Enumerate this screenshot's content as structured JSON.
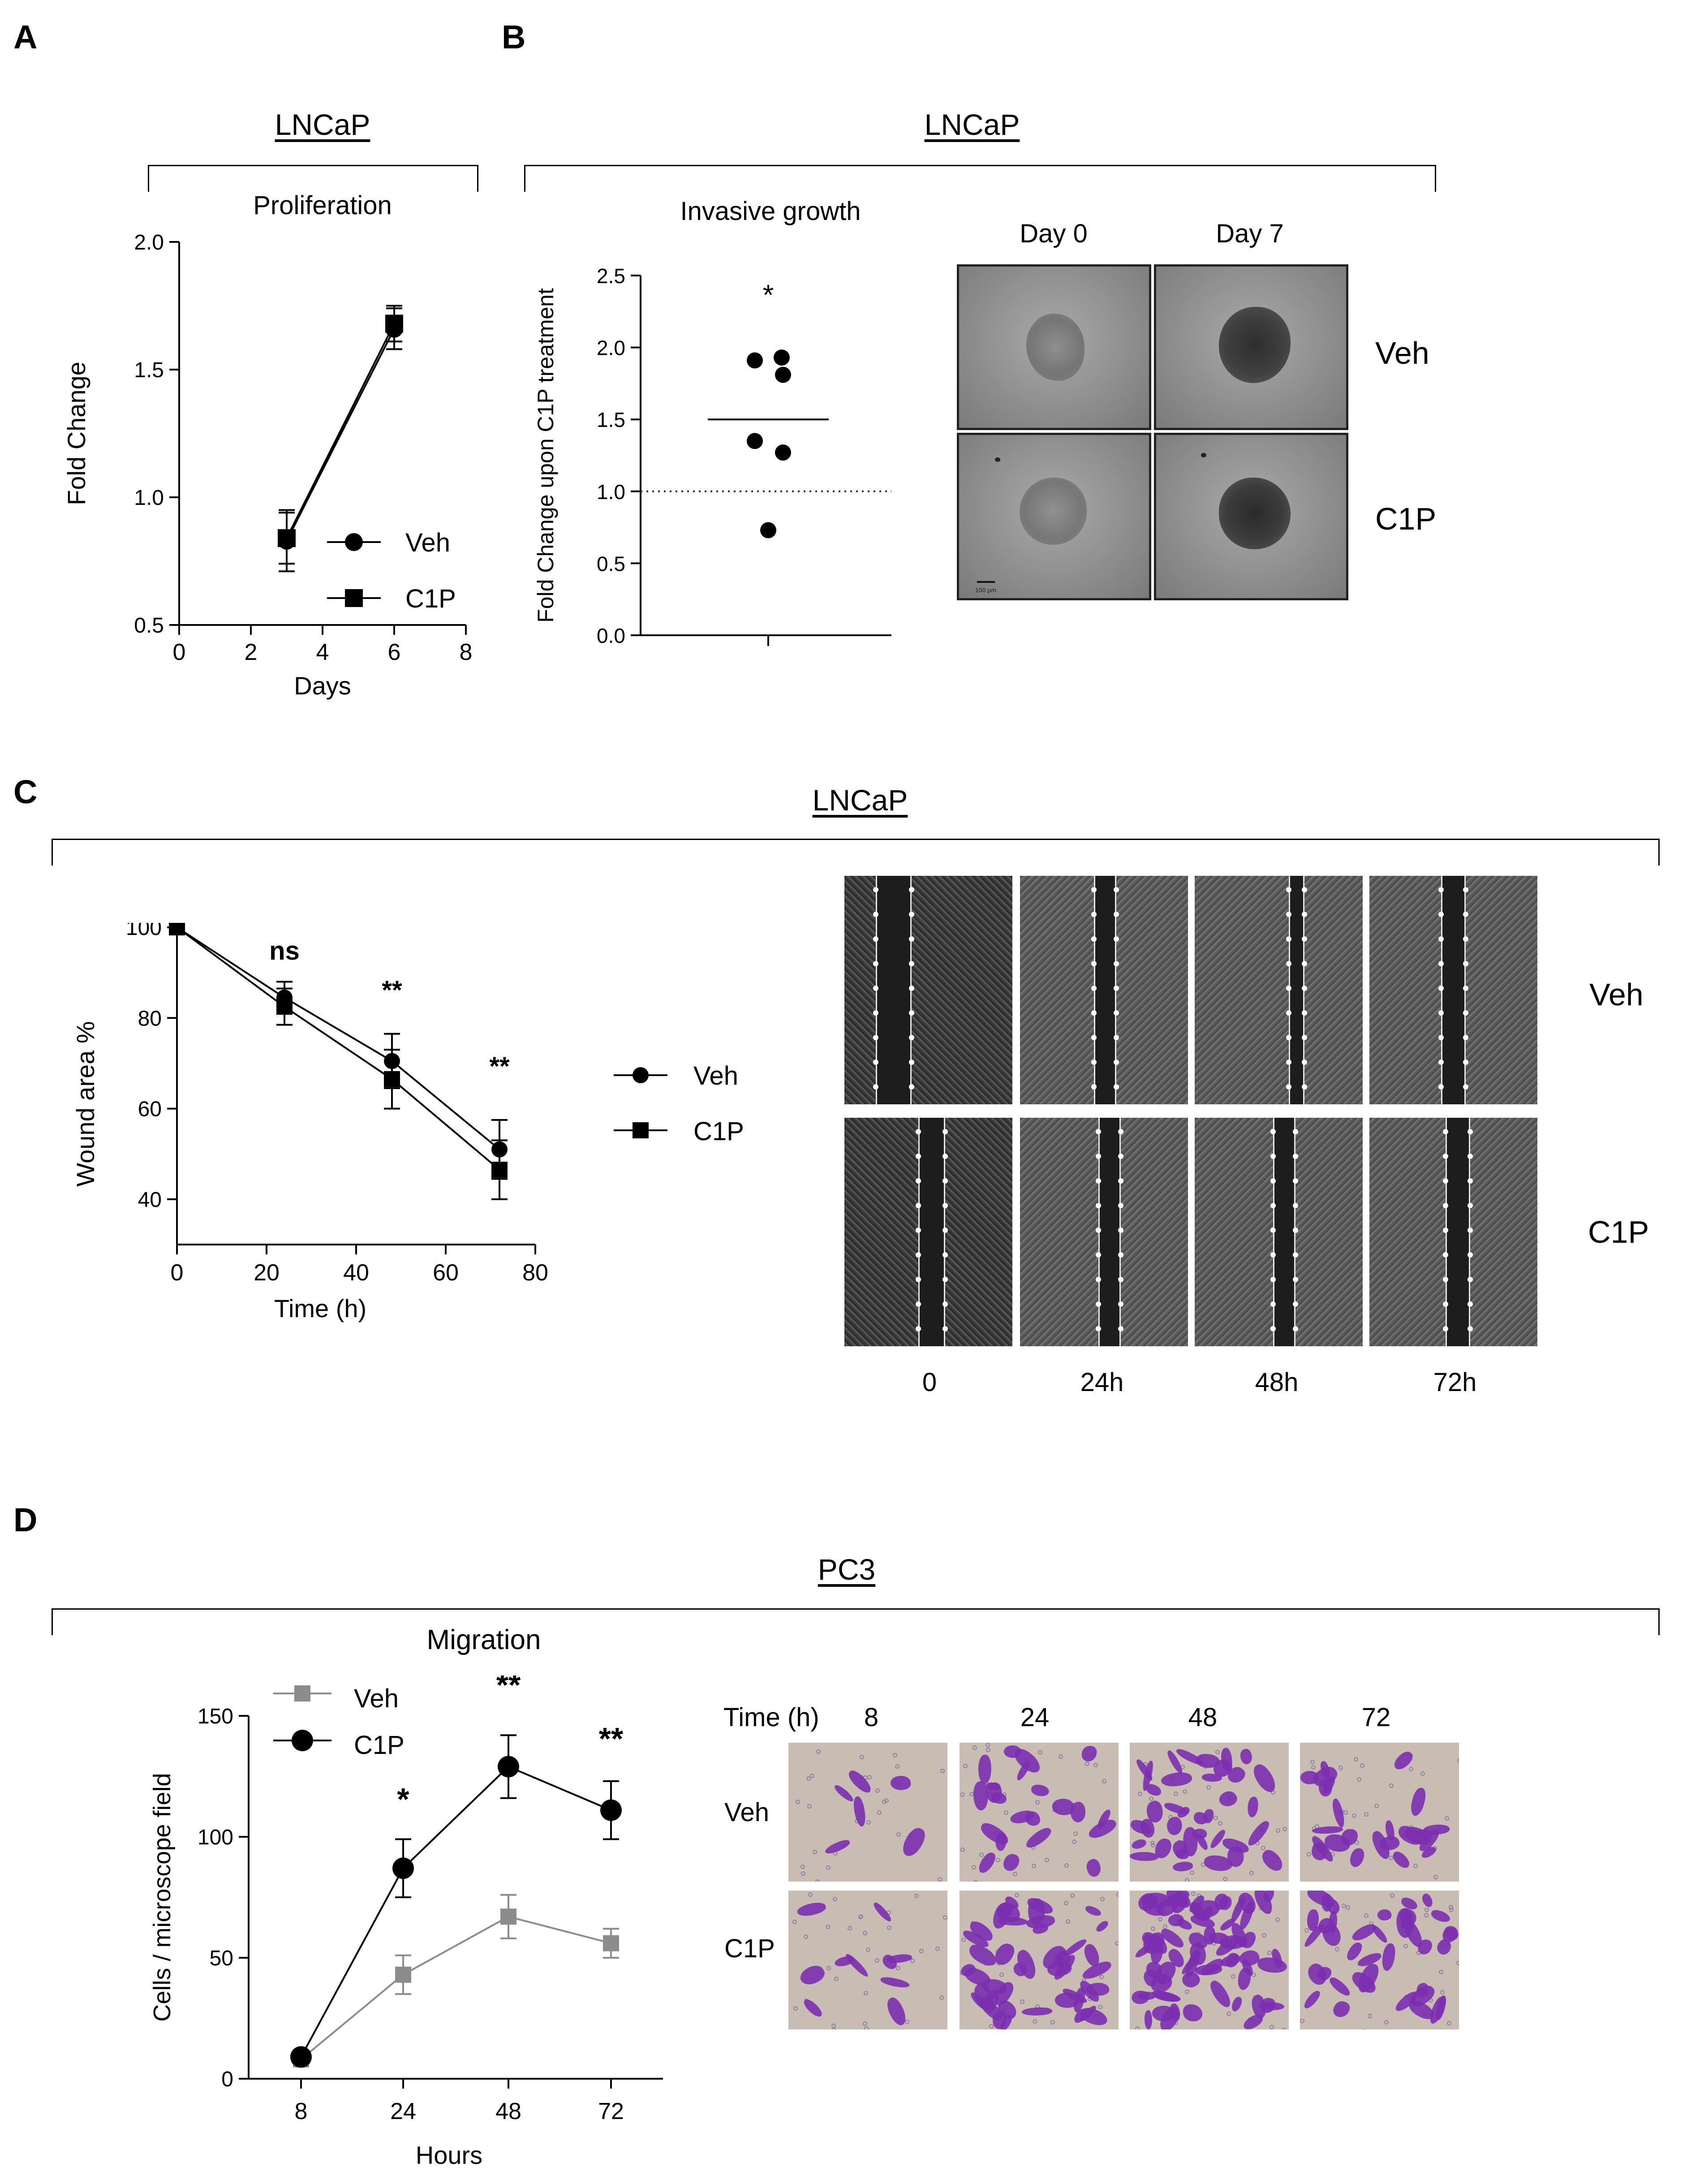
{
  "panels": {
    "A": {
      "letter": "A",
      "cell_line": "LNCaP",
      "chart_title": "Proliferation",
      "legend": [
        "Veh",
        "C1P"
      ]
    },
    "B": {
      "letter": "B",
      "cell_line": "LNCaP",
      "chart_title": "Invasive growth",
      "significance": "*",
      "image_cols": [
        "Day 0",
        "Day 7"
      ],
      "image_rows": [
        "Veh",
        "C1P"
      ],
      "scale_bar": "100 µm"
    },
    "C": {
      "letter": "C",
      "cell_line": "LNCaP",
      "significance": [
        "ns",
        "**",
        "**"
      ],
      "legend": [
        "Veh",
        "C1P"
      ],
      "image_rows": [
        "Veh",
        "C1P"
      ],
      "image_cols": [
        "0",
        "24h",
        "48h",
        "72h"
      ]
    },
    "D": {
      "letter": "D",
      "cell_line": "PC3",
      "chart_title": "Migration",
      "significance": [
        "*",
        "**",
        "**"
      ],
      "legend": [
        "Veh",
        "C1P"
      ],
      "time_label": "Time  (h)",
      "image_cols": [
        "8",
        "24",
        "48",
        "72"
      ],
      "image_rows": [
        "Veh",
        "C1P"
      ]
    }
  },
  "colors": {
    "veh_D": "#8c8c8c",
    "c1p_D": "#000000",
    "ink": "#000000",
    "dish": "#c9bdb3",
    "stain": "#7b2fb0"
  },
  "chart_data": [
    {
      "panel": "A",
      "type": "line",
      "title": "Proliferation",
      "xlabel": "Days",
      "ylabel": "Fold Change",
      "xlim": [
        0,
        8
      ],
      "ylim": [
        0.5,
        2.0
      ],
      "xticks": [
        "0",
        "2",
        "4",
        "6",
        "8"
      ],
      "yticks": [
        "0.5",
        "1.0",
        "1.5",
        "2.0"
      ],
      "series": [
        {
          "name": "Veh",
          "marker": "circle",
          "x": [
            3,
            6
          ],
          "y": [
            0.83,
            1.66
          ],
          "err": [
            0.12,
            0.08
          ]
        },
        {
          "name": "C1P",
          "marker": "square",
          "x": [
            3,
            6
          ],
          "y": [
            0.84,
            1.68
          ],
          "err": [
            0.1,
            0.07
          ]
        }
      ],
      "legend_position": "bottom-right"
    },
    {
      "panel": "B",
      "type": "scatter",
      "ylabel": "Fold Change upon C1P treatment",
      "ylim": [
        0.0,
        2.5
      ],
      "yticks": [
        "0.0",
        "0.5",
        "1.0",
        "1.5",
        "2.0",
        "2.5"
      ],
      "points": [
        1.91,
        1.93,
        1.81,
        1.35,
        1.27,
        0.73
      ],
      "mean": 1.5,
      "reference_line": 1.0
    },
    {
      "panel": "C",
      "type": "line",
      "xlabel": "Time (h)",
      "ylabel": "Wound area %",
      "xlim": [
        0,
        80
      ],
      "ylim": [
        30,
        100
      ],
      "xticks": [
        "0",
        "20",
        "40",
        "60",
        "80"
      ],
      "yticks": [
        "40",
        "60",
        "80",
        "100"
      ],
      "series": [
        {
          "name": "Veh",
          "marker": "circle",
          "x": [
            0,
            24,
            48,
            72
          ],
          "y": [
            100,
            84.5,
            70.5,
            51
          ],
          "err": [
            0,
            3.5,
            6,
            6.5
          ]
        },
        {
          "name": "C1P",
          "marker": "square",
          "x": [
            0,
            24,
            48,
            72
          ],
          "y": [
            100,
            82.5,
            66.5,
            46.5
          ],
          "err": [
            0,
            4,
            6.5,
            6.5
          ]
        }
      ],
      "legend_position": "right"
    },
    {
      "panel": "D",
      "type": "line",
      "title": "Migration",
      "xlabel": "Hours",
      "ylabel": "Cells / microscope field",
      "ylim": [
        0,
        150
      ],
      "categories": [
        "8",
        "24",
        "48",
        "72"
      ],
      "yticks": [
        "0",
        "50",
        "100",
        "150"
      ],
      "series": [
        {
          "name": "Veh",
          "marker": "square",
          "values": [
            8,
            43,
            67,
            56
          ],
          "err": [
            0,
            8,
            9,
            6
          ]
        },
        {
          "name": "C1P",
          "marker": "circle",
          "values": [
            9,
            87,
            129,
            111
          ],
          "err": [
            0,
            12,
            13,
            12
          ]
        }
      ],
      "legend_position": "top-left"
    }
  ]
}
